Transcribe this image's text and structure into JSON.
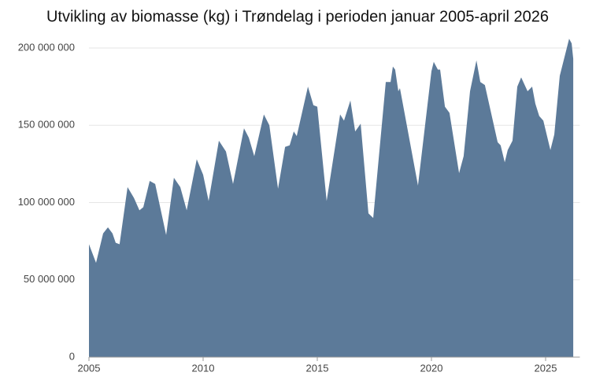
{
  "chart_data": {
    "type": "area",
    "title": "Utvikling av biomasse (kg) i Trøndelag i perioden januar 2005-april 2026",
    "color": "#5c7a99",
    "grid": true,
    "xlim": [
      2005,
      2026.5
    ],
    "xticks": [
      2005,
      2010,
      2015,
      2020,
      2025
    ],
    "ylim": [
      0,
      200000000
    ],
    "yticks": [
      0,
      {
        "value": 50000000,
        "label": "50 000 000"
      },
      {
        "value": 100000000,
        "label": "100 000 000"
      },
      {
        "value": 150000000,
        "label": "150 000 000"
      },
      {
        "value": 200000000,
        "label": "200 000 000"
      }
    ],
    "x": [
      2005.0,
      2005.31,
      2005.62,
      2005.83,
      2006.03,
      2006.17,
      2006.34,
      2006.69,
      2006.97,
      2007.21,
      2007.38,
      2007.66,
      2007.9,
      2008.38,
      2008.72,
      2009.0,
      2009.28,
      2009.72,
      2010.0,
      2010.24,
      2010.69,
      2011.0,
      2011.31,
      2011.79,
      2012.0,
      2012.24,
      2012.66,
      2012.9,
      2013.28,
      2013.59,
      2013.79,
      2013.97,
      2014.1,
      2014.59,
      2014.83,
      2015.0,
      2015.41,
      2016.0,
      2016.17,
      2016.45,
      2016.66,
      2016.9,
      2017.24,
      2017.45,
      2018.0,
      2018.21,
      2018.31,
      2018.41,
      2018.55,
      2018.62,
      2019.41,
      2020.0,
      2020.1,
      2020.28,
      2020.38,
      2020.59,
      2020.79,
      2021.21,
      2021.41,
      2021.69,
      2021.97,
      2022.14,
      2022.34,
      2022.9,
      2023.03,
      2023.21,
      2023.34,
      2023.55,
      2023.76,
      2023.93,
      2024.21,
      2024.41,
      2024.55,
      2024.72,
      2024.9,
      2025.21,
      2025.38,
      2025.62,
      2026.03,
      2026.14,
      2026.21
    ],
    "values": [
      73000000,
      61000000,
      80000000,
      84000000,
      80000000,
      74000000,
      73000000,
      110000000,
      103000000,
      95000000,
      97000000,
      114000000,
      112000000,
      79000000,
      116000000,
      110000000,
      95000000,
      128000000,
      118000000,
      101000000,
      140000000,
      133000000,
      112000000,
      148000000,
      142000000,
      130000000,
      157000000,
      150000000,
      109000000,
      136000000,
      137000000,
      146000000,
      143000000,
      175000000,
      163000000,
      162000000,
      101000000,
      157000000,
      153000000,
      166000000,
      146000000,
      151000000,
      93000000,
      90000000,
      178000000,
      178000000,
      188000000,
      186000000,
      172000000,
      174000000,
      111000000,
      185000000,
      191000000,
      186000000,
      186000000,
      162000000,
      158000000,
      119000000,
      130000000,
      172000000,
      192000000,
      178000000,
      176000000,
      139000000,
      137000000,
      126000000,
      134000000,
      140000000,
      175000000,
      181000000,
      172000000,
      175000000,
      164000000,
      156000000,
      153000000,
      134000000,
      144000000,
      182000000,
      206000000,
      203000000,
      193000000
    ]
  }
}
